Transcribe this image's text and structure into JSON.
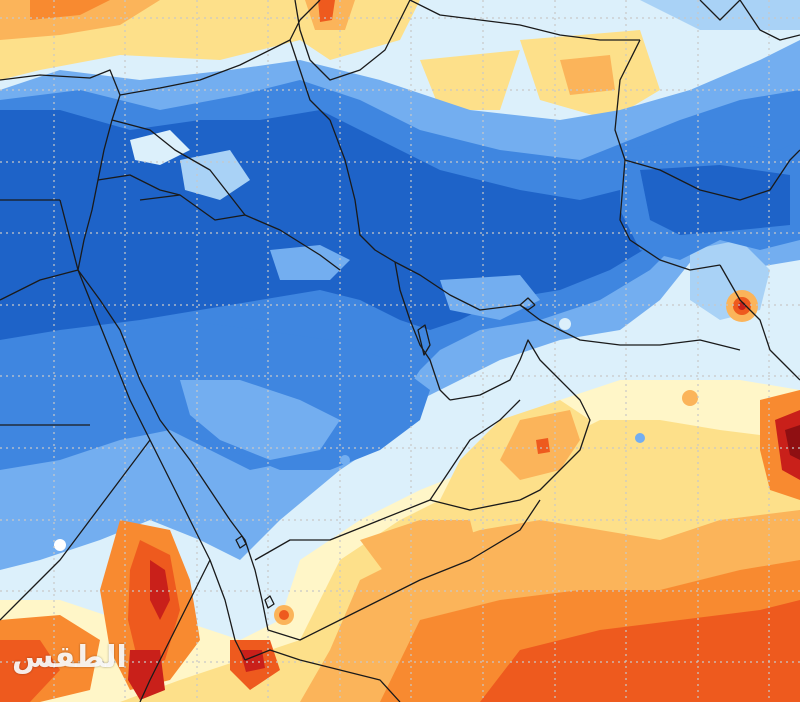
{
  "map": {
    "watermark_text": "الطقس",
    "palette": {
      "deep_blue": "#1e63c8",
      "blue": "#3f86e0",
      "mid_blue": "#73aef0",
      "light_blue": "#a9d2f6",
      "pale_blue": "#dcf0fb",
      "cream": "#fff6c8",
      "yellow": "#fde08a",
      "light_orange": "#fbb45a",
      "orange": "#f88a30",
      "red_orange": "#ee5a1e",
      "red": "#c9201a",
      "dark_red": "#8f0f12",
      "border": "#1a1a1a",
      "grid": "#c8c8c8"
    }
  }
}
